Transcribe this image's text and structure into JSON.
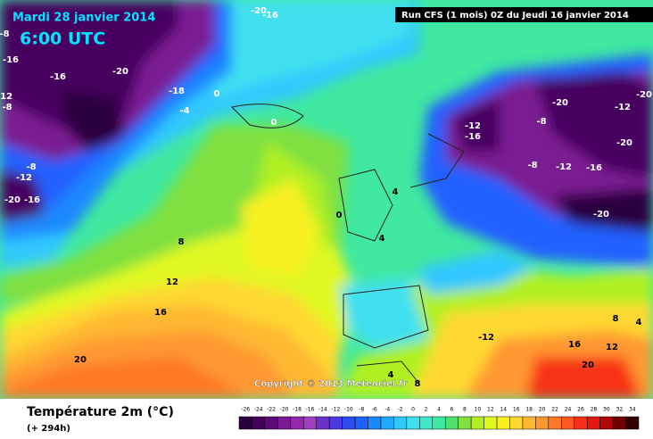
{
  "header": {
    "date": "Mardi 28 janvier 2014",
    "time": "6:00 UTC",
    "run": "Run CFS (1 mois) 0Z du Jeudi 16 janvier 2014"
  },
  "map": {
    "contour_labels": [
      -20,
      -16,
      -8,
      -16,
      -16,
      -20,
      -12,
      -8,
      -18,
      -4,
      0,
      0,
      -8,
      -12,
      -20,
      -16,
      4,
      0,
      4,
      8,
      12,
      16,
      20,
      -12,
      -16,
      -8,
      -20,
      -12,
      -20,
      -20,
      -8,
      -12,
      -16,
      -20,
      -12,
      8,
      4,
      12,
      16,
      20,
      4,
      8
    ],
    "copyright": "Copyright © 2013 Meteociel.fr"
  },
  "legend": {
    "title": "Température 2m (°C)",
    "lead_time": "(+ 294h)",
    "ticks": [
      -26,
      -24,
      -22,
      -20,
      -18,
      -16,
      -14,
      -12,
      -10,
      -8,
      -6,
      -4,
      -2,
      0,
      2,
      4,
      6,
      8,
      10,
      12,
      14,
      16,
      18,
      20,
      22,
      24,
      26,
      28,
      30,
      32,
      34
    ],
    "colors": [
      "#2a0040",
      "#46005e",
      "#5e0a78",
      "#7a1a92",
      "#9228ac",
      "#a040c0",
      "#6a32c8",
      "#4a3ae0",
      "#2f4cf0",
      "#2060ff",
      "#1a88ff",
      "#20aaff",
      "#30c8ff",
      "#40e0f0",
      "#40e8c8",
      "#40e8a0",
      "#50e070",
      "#80e040",
      "#b0f020",
      "#e0f820",
      "#f8f020",
      "#ffd830",
      "#ffb830",
      "#ff9830",
      "#ff7828",
      "#ff5820",
      "#f83018",
      "#e01810",
      "#b00808",
      "#700000",
      "#300000"
    ]
  }
}
